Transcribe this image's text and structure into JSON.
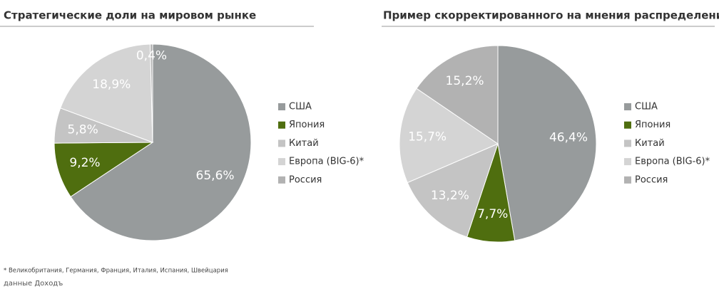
{
  "chart_data": [
    {
      "type": "pie",
      "title": "Стратегические доли на мировом рынке",
      "categories": [
        "США",
        "Япония",
        "Китай",
        "Европа (BIG-6)*",
        "Россия"
      ],
      "values": [
        65.6,
        9.2,
        5.8,
        18.9,
        0.4
      ],
      "value_labels": [
        "65,6%",
        "9,2%",
        "5,8%",
        "18,9%",
        "0,4%"
      ],
      "colors": [
        "#979b9c",
        "#4f6e0f",
        "#c4c4c4",
        "#d4d4d4",
        "#b2b2b2"
      ]
    },
    {
      "type": "pie",
      "title": "Пример скорректированного на мнения распределения",
      "categories": [
        "США",
        "Япония",
        "Китай",
        "Европа (BIG-6)*",
        "Россия"
      ],
      "values": [
        46.4,
        7.7,
        13.2,
        15.7,
        15.2
      ],
      "value_labels": [
        "46,4%",
        "7,7%",
        "13,2%",
        "15,7%",
        "15,2%"
      ],
      "colors": [
        "#979b9c",
        "#4f6e0f",
        "#c4c4c4",
        "#d4d4d4",
        "#b2b2b2"
      ]
    }
  ],
  "footnotes": [
    "* Великобритания, Германия, Франция, Италия, Испания, Швейцария",
    "данные Доходъ"
  ]
}
